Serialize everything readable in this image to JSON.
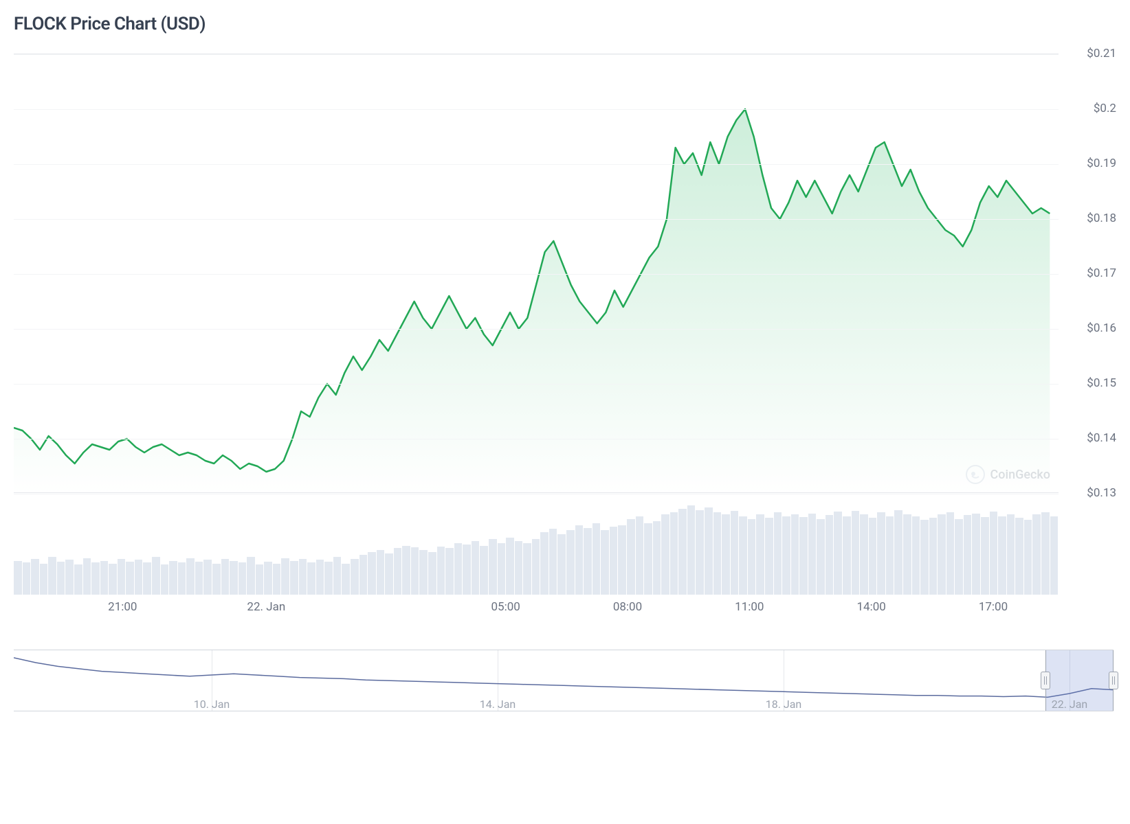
{
  "chart": {
    "title": "FLOCK Price Chart (USD)",
    "type": "area",
    "line_color": "#22a856",
    "line_width": 2.5,
    "fill_top_color": "rgba(74, 194, 122, 0.28)",
    "fill_bottom_color": "rgba(74, 194, 122, 0.0)",
    "background_color": "#ffffff",
    "grid_color": "#f3f4f6",
    "axis_text_color": "#6b7280",
    "title_fontsize": 26,
    "label_fontsize": 17,
    "y_axis": {
      "min": 0.13,
      "max": 0.21,
      "ticks": [
        {
          "value": 0.21,
          "label": "$0.21"
        },
        {
          "value": 0.2,
          "label": "$0.2"
        },
        {
          "value": 0.19,
          "label": "$0.19"
        },
        {
          "value": 0.18,
          "label": "$0.18"
        },
        {
          "value": 0.17,
          "label": "$0.17"
        },
        {
          "value": 0.16,
          "label": "$0.16"
        },
        {
          "value": 0.15,
          "label": "$0.15"
        },
        {
          "value": 0.14,
          "label": "$0.14"
        },
        {
          "value": 0.13,
          "label": "$0.13"
        }
      ]
    },
    "x_axis": {
      "min": 0,
      "max": 24,
      "ticks": [
        {
          "pos": 2.5,
          "label": "21:00"
        },
        {
          "pos": 5.8,
          "label": "22. Jan"
        },
        {
          "pos": 11.3,
          "label": "05:00"
        },
        {
          "pos": 14.1,
          "label": "08:00"
        },
        {
          "pos": 16.9,
          "label": "11:00"
        },
        {
          "pos": 19.7,
          "label": "14:00"
        },
        {
          "pos": 22.5,
          "label": "17:00"
        }
      ]
    },
    "series": [
      [
        0.0,
        0.142
      ],
      [
        0.2,
        0.1415
      ],
      [
        0.4,
        0.14
      ],
      [
        0.6,
        0.138
      ],
      [
        0.8,
        0.1405
      ],
      [
        1.0,
        0.139
      ],
      [
        1.2,
        0.137
      ],
      [
        1.4,
        0.1355
      ],
      [
        1.6,
        0.1375
      ],
      [
        1.8,
        0.139
      ],
      [
        2.0,
        0.1385
      ],
      [
        2.2,
        0.138
      ],
      [
        2.4,
        0.1395
      ],
      [
        2.6,
        0.14
      ],
      [
        2.8,
        0.1385
      ],
      [
        3.0,
        0.1375
      ],
      [
        3.2,
        0.1385
      ],
      [
        3.4,
        0.139
      ],
      [
        3.6,
        0.138
      ],
      [
        3.8,
        0.137
      ],
      [
        4.0,
        0.1375
      ],
      [
        4.2,
        0.137
      ],
      [
        4.4,
        0.136
      ],
      [
        4.6,
        0.1355
      ],
      [
        4.8,
        0.137
      ],
      [
        5.0,
        0.136
      ],
      [
        5.2,
        0.1345
      ],
      [
        5.4,
        0.1355
      ],
      [
        5.6,
        0.135
      ],
      [
        5.8,
        0.134
      ],
      [
        6.0,
        0.1345
      ],
      [
        6.2,
        0.136
      ],
      [
        6.4,
        0.14
      ],
      [
        6.6,
        0.145
      ],
      [
        6.8,
        0.144
      ],
      [
        7.0,
        0.1475
      ],
      [
        7.2,
        0.15
      ],
      [
        7.4,
        0.148
      ],
      [
        7.6,
        0.152
      ],
      [
        7.8,
        0.155
      ],
      [
        8.0,
        0.1525
      ],
      [
        8.2,
        0.155
      ],
      [
        8.4,
        0.158
      ],
      [
        8.6,
        0.156
      ],
      [
        8.8,
        0.159
      ],
      [
        9.0,
        0.162
      ],
      [
        9.2,
        0.165
      ],
      [
        9.4,
        0.162
      ],
      [
        9.6,
        0.16
      ],
      [
        9.8,
        0.163
      ],
      [
        10.0,
        0.166
      ],
      [
        10.2,
        0.163
      ],
      [
        10.4,
        0.16
      ],
      [
        10.6,
        0.162
      ],
      [
        10.8,
        0.159
      ],
      [
        11.0,
        0.157
      ],
      [
        11.2,
        0.16
      ],
      [
        11.4,
        0.163
      ],
      [
        11.6,
        0.16
      ],
      [
        11.8,
        0.162
      ],
      [
        12.0,
        0.168
      ],
      [
        12.2,
        0.174
      ],
      [
        12.4,
        0.176
      ],
      [
        12.6,
        0.172
      ],
      [
        12.8,
        0.168
      ],
      [
        13.0,
        0.165
      ],
      [
        13.2,
        0.163
      ],
      [
        13.4,
        0.161
      ],
      [
        13.6,
        0.163
      ],
      [
        13.8,
        0.167
      ],
      [
        14.0,
        0.164
      ],
      [
        14.2,
        0.167
      ],
      [
        14.4,
        0.17
      ],
      [
        14.6,
        0.173
      ],
      [
        14.8,
        0.175
      ],
      [
        15.0,
        0.18
      ],
      [
        15.2,
        0.193
      ],
      [
        15.4,
        0.19
      ],
      [
        15.6,
        0.192
      ],
      [
        15.8,
        0.188
      ],
      [
        16.0,
        0.194
      ],
      [
        16.2,
        0.19
      ],
      [
        16.4,
        0.195
      ],
      [
        16.6,
        0.198
      ],
      [
        16.8,
        0.2
      ],
      [
        17.0,
        0.195
      ],
      [
        17.2,
        0.188
      ],
      [
        17.4,
        0.182
      ],
      [
        17.6,
        0.18
      ],
      [
        17.8,
        0.183
      ],
      [
        18.0,
        0.187
      ],
      [
        18.2,
        0.184
      ],
      [
        18.4,
        0.187
      ],
      [
        18.6,
        0.184
      ],
      [
        18.8,
        0.181
      ],
      [
        19.0,
        0.185
      ],
      [
        19.2,
        0.188
      ],
      [
        19.4,
        0.185
      ],
      [
        19.6,
        0.189
      ],
      [
        19.8,
        0.193
      ],
      [
        20.0,
        0.194
      ],
      [
        20.2,
        0.19
      ],
      [
        20.4,
        0.186
      ],
      [
        20.6,
        0.189
      ],
      [
        20.8,
        0.185
      ],
      [
        21.0,
        0.182
      ],
      [
        21.2,
        0.18
      ],
      [
        21.4,
        0.178
      ],
      [
        21.6,
        0.177
      ],
      [
        21.8,
        0.175
      ],
      [
        22.0,
        0.178
      ],
      [
        22.2,
        0.183
      ],
      [
        22.4,
        0.186
      ],
      [
        22.6,
        0.184
      ],
      [
        22.8,
        0.187
      ],
      [
        23.0,
        0.185
      ],
      [
        23.2,
        0.183
      ],
      [
        23.4,
        0.181
      ],
      [
        23.6,
        0.182
      ],
      [
        23.8,
        0.181
      ]
    ],
    "watermark_text": "CoinGecko"
  },
  "volume": {
    "bar_color": "#e2e8f0",
    "bars": [
      38,
      36,
      40,
      35,
      42,
      37,
      39,
      34,
      41,
      36,
      38,
      35,
      40,
      37,
      39,
      36,
      42,
      34,
      38,
      36,
      41,
      37,
      39,
      35,
      40,
      38,
      36,
      42,
      34,
      37,
      35,
      41,
      38,
      40,
      36,
      39,
      37,
      42,
      35,
      40,
      45,
      48,
      50,
      46,
      52,
      55,
      53,
      50,
      48,
      54,
      52,
      58,
      56,
      60,
      55,
      62,
      58,
      64,
      60,
      58,
      62,
      70,
      74,
      68,
      72,
      78,
      75,
      80,
      72,
      76,
      78,
      85,
      88,
      80,
      82,
      90,
      92,
      96,
      100,
      95,
      98,
      92,
      90,
      94,
      88,
      85,
      90,
      86,
      92,
      88,
      90,
      87,
      91,
      85,
      89,
      93,
      88,
      94,
      90,
      86,
      92,
      88,
      95,
      90,
      88,
      84,
      86,
      90,
      92,
      85,
      89,
      91,
      87,
      93,
      88,
      90,
      86,
      84,
      90,
      92,
      88
    ]
  },
  "navigator": {
    "line_color": "#5b6b9e",
    "line_width": 1.5,
    "selection_color": "rgba(102,126,204,0.22)",
    "x_ticks": [
      {
        "pos": 0.18,
        "label": "10. Jan"
      },
      {
        "pos": 0.44,
        "label": "14. Jan"
      },
      {
        "pos": 0.7,
        "label": "18. Jan"
      },
      {
        "pos": 0.96,
        "label": "22. Jan"
      }
    ],
    "dividers": [
      0.18,
      0.44,
      0.7,
      0.96
    ],
    "selection": {
      "start": 0.938,
      "end": 1.0
    },
    "series": [
      [
        0.0,
        0.88
      ],
      [
        0.02,
        0.8
      ],
      [
        0.04,
        0.74
      ],
      [
        0.06,
        0.7
      ],
      [
        0.08,
        0.66
      ],
      [
        0.1,
        0.64
      ],
      [
        0.12,
        0.62
      ],
      [
        0.14,
        0.6
      ],
      [
        0.16,
        0.58
      ],
      [
        0.18,
        0.6
      ],
      [
        0.2,
        0.62
      ],
      [
        0.22,
        0.6
      ],
      [
        0.24,
        0.58
      ],
      [
        0.26,
        0.56
      ],
      [
        0.28,
        0.55
      ],
      [
        0.3,
        0.54
      ],
      [
        0.32,
        0.52
      ],
      [
        0.34,
        0.51
      ],
      [
        0.36,
        0.5
      ],
      [
        0.38,
        0.49
      ],
      [
        0.4,
        0.48
      ],
      [
        0.42,
        0.47
      ],
      [
        0.44,
        0.46
      ],
      [
        0.46,
        0.45
      ],
      [
        0.48,
        0.44
      ],
      [
        0.5,
        0.43
      ],
      [
        0.52,
        0.42
      ],
      [
        0.54,
        0.41
      ],
      [
        0.56,
        0.4
      ],
      [
        0.58,
        0.39
      ],
      [
        0.6,
        0.38
      ],
      [
        0.62,
        0.37
      ],
      [
        0.64,
        0.36
      ],
      [
        0.66,
        0.35
      ],
      [
        0.68,
        0.34
      ],
      [
        0.7,
        0.33
      ],
      [
        0.72,
        0.32
      ],
      [
        0.74,
        0.31
      ],
      [
        0.76,
        0.3
      ],
      [
        0.78,
        0.29
      ],
      [
        0.8,
        0.28
      ],
      [
        0.82,
        0.27
      ],
      [
        0.84,
        0.27
      ],
      [
        0.86,
        0.26
      ],
      [
        0.88,
        0.26
      ],
      [
        0.9,
        0.25
      ],
      [
        0.92,
        0.26
      ],
      [
        0.94,
        0.24
      ],
      [
        0.96,
        0.3
      ],
      [
        0.98,
        0.38
      ],
      [
        1.0,
        0.36
      ]
    ]
  }
}
